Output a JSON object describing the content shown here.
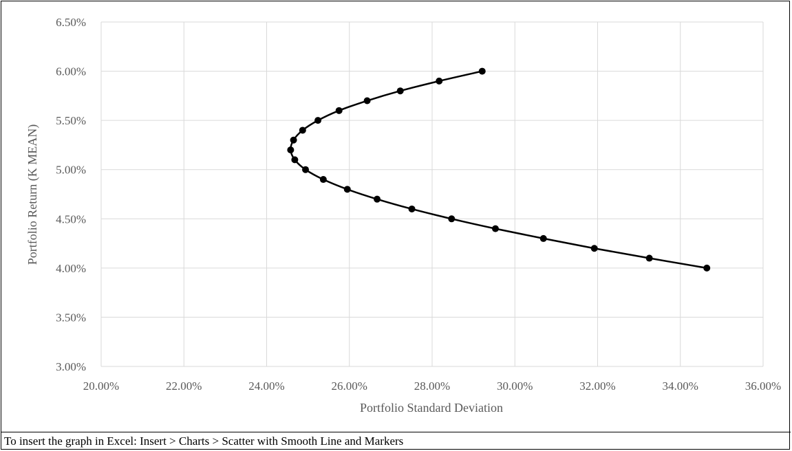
{
  "caption": "To insert the graph in Excel: Insert > Charts > Scatter with Smooth Line and Markers",
  "chart_data": {
    "type": "scatter",
    "title": "",
    "xlabel": "Portfolio Standard Deviation",
    "ylabel": "Portfolio Return (K MEAN)",
    "xlim": [
      0.2,
      0.36
    ],
    "ylim": [
      0.03,
      0.065
    ],
    "x_ticks": [
      "20.00%",
      "22.00%",
      "24.00%",
      "26.00%",
      "28.00%",
      "30.00%",
      "32.00%",
      "34.00%",
      "36.00%"
    ],
    "y_ticks": [
      "3.00%",
      "3.50%",
      "4.00%",
      "4.50%",
      "5.00%",
      "5.50%",
      "6.00%",
      "6.50%"
    ],
    "grid": true,
    "line_style": "smooth line with markers",
    "series": [
      {
        "color": "#000000",
        "points": [
          {
            "x": 0.3464,
            "y": 0.04
          },
          {
            "x": 0.3325,
            "y": 0.041
          },
          {
            "x": 0.3192,
            "y": 0.042
          },
          {
            "x": 0.3069,
            "y": 0.043
          },
          {
            "x": 0.2953,
            "y": 0.044
          },
          {
            "x": 0.2847,
            "y": 0.045
          },
          {
            "x": 0.2751,
            "y": 0.046
          },
          {
            "x": 0.2667,
            "y": 0.047
          },
          {
            "x": 0.2595,
            "y": 0.048
          },
          {
            "x": 0.2537,
            "y": 0.049
          },
          {
            "x": 0.2494,
            "y": 0.05
          },
          {
            "x": 0.2468,
            "y": 0.051
          },
          {
            "x": 0.2458,
            "y": 0.052
          },
          {
            "x": 0.2465,
            "y": 0.053
          },
          {
            "x": 0.2487,
            "y": 0.054
          },
          {
            "x": 0.2524,
            "y": 0.055
          },
          {
            "x": 0.2575,
            "y": 0.056
          },
          {
            "x": 0.2643,
            "y": 0.057
          },
          {
            "x": 0.2723,
            "y": 0.058
          },
          {
            "x": 0.2817,
            "y": 0.059
          },
          {
            "x": 0.2921,
            "y": 0.06
          }
        ]
      }
    ]
  }
}
